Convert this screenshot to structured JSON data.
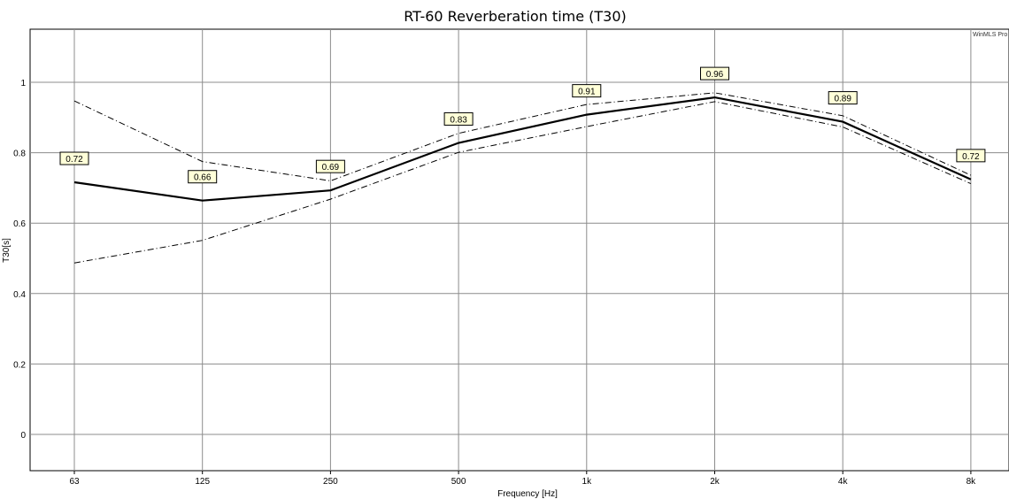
{
  "chart_data": {
    "type": "line",
    "title": "RT-60 Reverberation time (T30)",
    "xlabel": "Frequency [Hz]",
    "ylabel": "T30[s]",
    "x_scale": "log",
    "categories": [
      "63",
      "125",
      "250",
      "500",
      "1k",
      "2k",
      "4k",
      "8k"
    ],
    "ylim": [
      -0.1,
      1.15
    ],
    "yticks": [
      0,
      0.2,
      0.4,
      0.6,
      0.8,
      1
    ],
    "ytick_labels": [
      "0",
      "0.2",
      "0.4",
      "0.6",
      "0.8",
      "1"
    ],
    "grid": true,
    "watermark": "WinMLS Pro",
    "series": [
      {
        "values": [
          0.716,
          0.664,
          0.693,
          0.828,
          0.908,
          0.957,
          0.888,
          0.724
        ],
        "style": "solid",
        "color": "#000000"
      },
      {
        "values": [
          0.947,
          0.775,
          0.72,
          0.855,
          0.937,
          0.97,
          0.905,
          0.736
        ],
        "style": "dashdot",
        "color": "#000000"
      },
      {
        "values": [
          0.487,
          0.551,
          0.668,
          0.801,
          0.874,
          0.945,
          0.873,
          0.712
        ],
        "style": "dashdot",
        "color": "#000000"
      }
    ],
    "data_labels": [
      "0.72",
      "0.66",
      "0.69",
      "0.83",
      "0.91",
      "0.96",
      "0.89",
      "0.72"
    ]
  }
}
